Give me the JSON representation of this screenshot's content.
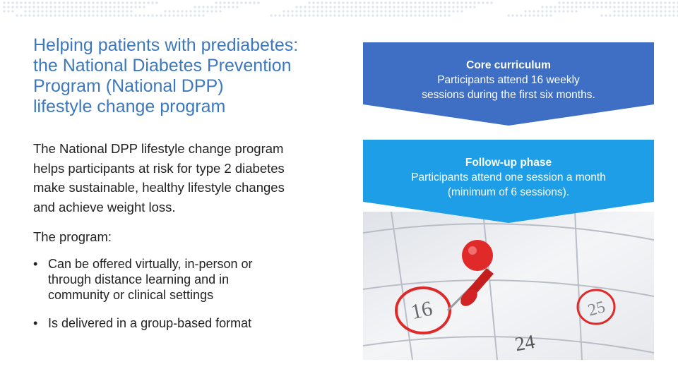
{
  "title_lines": [
    "Helping patients with prediabetes:",
    "the National Diabetes Prevention",
    "Program (National DPP)",
    "lifestyle change program"
  ],
  "body_lines": [
    "The National DPP lifestyle change program",
    "helps participants at risk for type 2 diabetes",
    "make sustainable, healthy lifestyle changes",
    "and achieve weight loss."
  ],
  "program_label": "The program:",
  "bullets": [
    {
      "lines": [
        "Can be offered virtually, in-person or",
        "through distance learning and in",
        "community or clinical settings"
      ]
    },
    {
      "lines": [
        "Is delivered in a group-based format"
      ]
    }
  ],
  "bullet_symbol": "•",
  "core": {
    "heading": "Core curriculum",
    "lines": [
      "Participants attend 16 weekly",
      "sessions during the first six months."
    ],
    "color": "#3e6fc4"
  },
  "follow_up": {
    "heading": "Follow-up phase",
    "lines": [
      "Participants attend one session a month",
      "(minimum of 6 sessions)."
    ],
    "color": "#1e9ee6"
  },
  "calendar": {
    "numbers": [
      "16",
      "25",
      "24"
    ],
    "pin_color": "#e02a2a"
  }
}
